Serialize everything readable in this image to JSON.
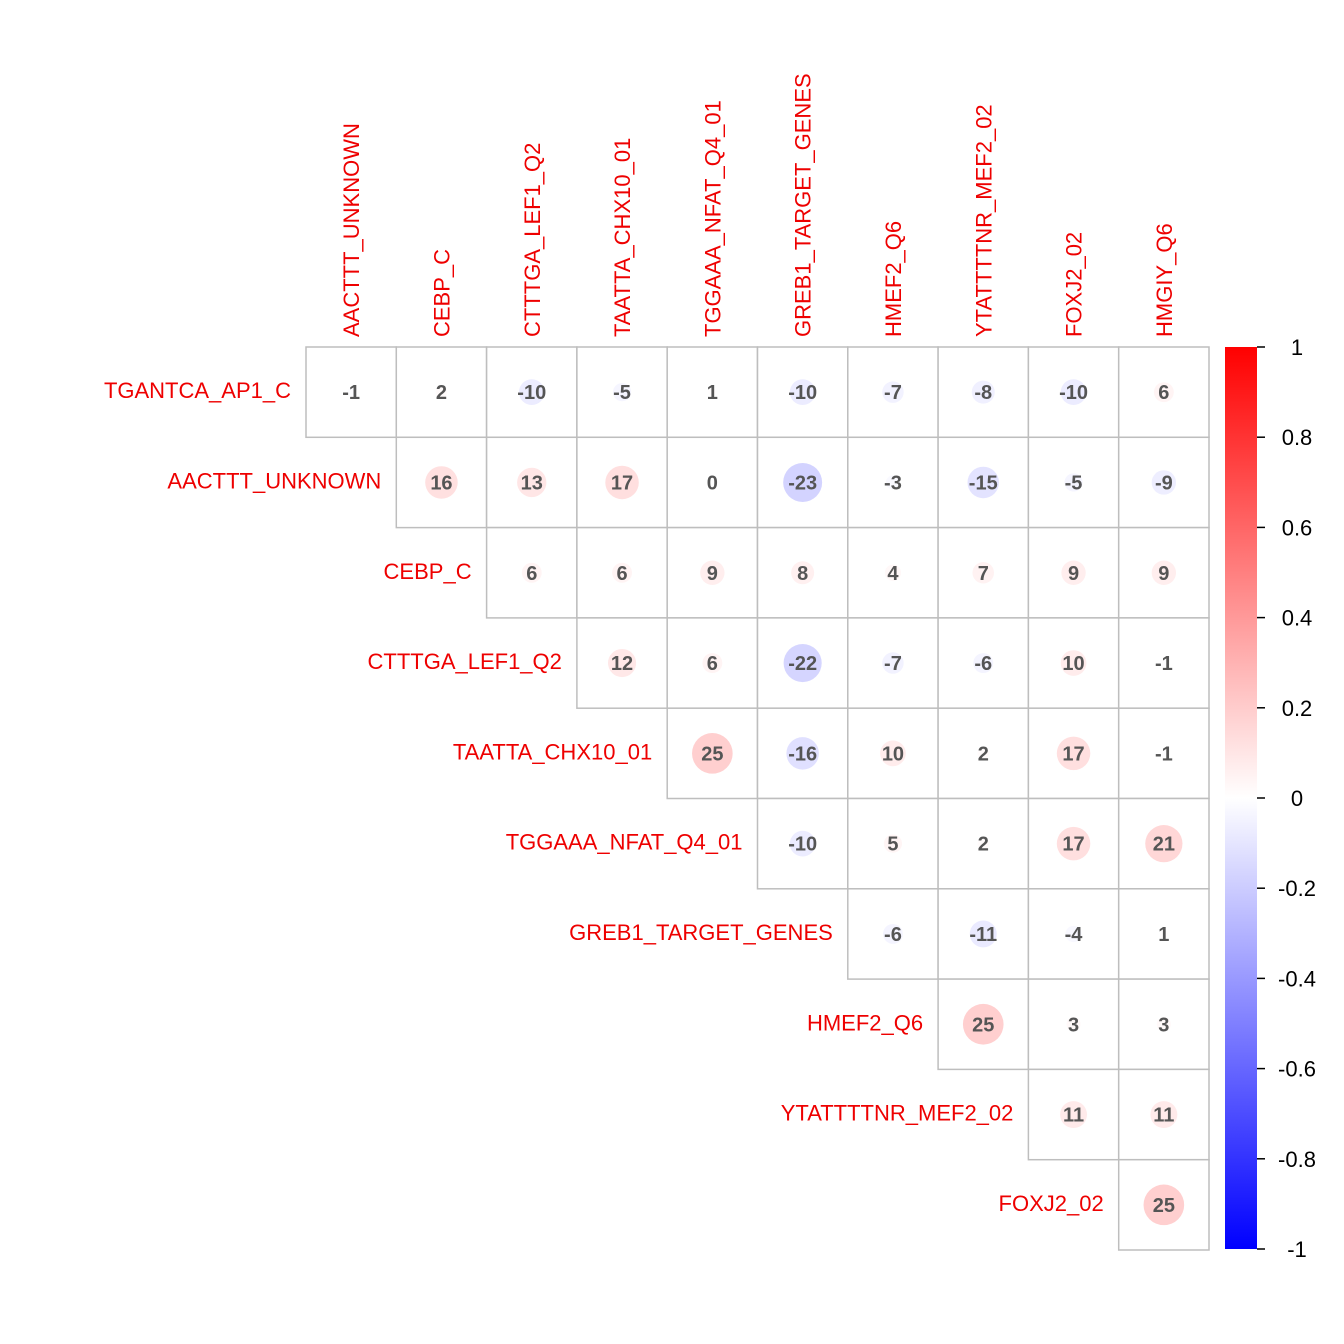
{
  "chart_data": {
    "type": "heatmap",
    "row_labels": [
      "TGANTCA_AP1_C",
      "AACTTT_UNKNOWN",
      "CEBP_C",
      "CTTTGA_LEF1_Q2",
      "TAATTA_CHX10_01",
      "TGGAAA_NFAT_Q4_01",
      "GREB1_TARGET_GENES",
      "HMEF2_Q6",
      "YTATTTTNR_MEF2_02",
      "FOXJ2_02"
    ],
    "col_labels": [
      "AACTTT_UNKNOWN",
      "CEBP_C",
      "CTTTGA_LEF1_Q2",
      "TAATTA_CHX10_01",
      "TGGAAA_NFAT_Q4_01",
      "GREB1_TARGET_GENES",
      "HMEF2_Q6",
      "YTATTTTNR_MEF2_02",
      "FOXJ2_02",
      "HMGIY_Q6"
    ],
    "values": [
      [
        -1,
        2,
        -10,
        -5,
        1,
        -10,
        -7,
        -8,
        -10,
        6
      ],
      [
        16,
        13,
        17,
        0,
        -23,
        -3,
        -15,
        -5,
        -9
      ],
      [
        6,
        6,
        9,
        8,
        4,
        7,
        9,
        9
      ],
      [
        12,
        6,
        -22,
        -7,
        -6,
        10,
        -1
      ],
      [
        25,
        -16,
        10,
        2,
        17,
        -1
      ],
      [
        -10,
        5,
        2,
        17,
        21
      ],
      [
        -6,
        -11,
        -4,
        1
      ],
      [
        25,
        3,
        3
      ],
      [
        11,
        11
      ],
      [
        25
      ]
    ],
    "value_scale": 100,
    "colorbar": {
      "range": [
        -1,
        1
      ],
      "ticks": [
        "1",
        "0.8",
        "0.6",
        "0.4",
        "0.2",
        "0",
        "-0.2",
        "-0.4",
        "-0.6",
        "-0.8",
        "-1"
      ],
      "colors": [
        "#0000ff",
        "#ffffff",
        "#ff0000"
      ]
    },
    "label_color": "#ee0000",
    "grid_color": "#bebebe",
    "value_text_color": "#555555"
  }
}
